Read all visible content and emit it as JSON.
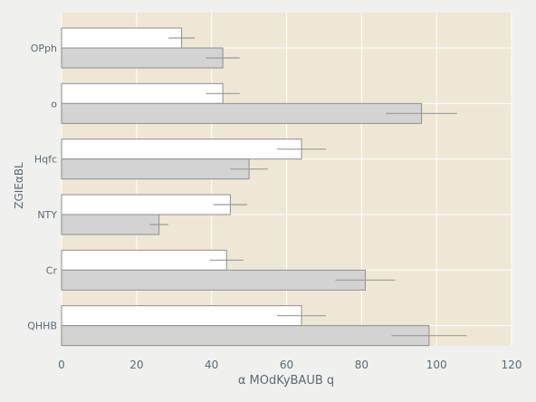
{
  "chart_data": {
    "type": "bar",
    "orientation": "horizontal",
    "categories": [
      "OPph",
      "o",
      "Hqfc",
      "NTY",
      "Cr",
      "QHHB"
    ],
    "series": [
      {
        "values": [
          32,
          43,
          64,
          45,
          44,
          64
        ],
        "errors": [
          3.5,
          4.5,
          6.5,
          4.5,
          4.5,
          6.5
        ],
        "color": "#ffffff"
      },
      {
        "values": [
          43,
          96,
          50,
          26,
          81,
          98
        ],
        "errors": [
          4.5,
          9.5,
          5,
          2.5,
          8,
          10
        ],
        "color": "#d3d3d3"
      }
    ],
    "xlabel": "α MOdKyBAUB q",
    "ylabel": "ZGIEαBL",
    "xlim": [
      0,
      120
    ],
    "xticks": [
      "0",
      "20",
      "40",
      "60",
      "80",
      "100",
      "120"
    ],
    "grid": true,
    "colors": {
      "page_background": "#f0f0ee",
      "plot_background": "#efe7d5",
      "grid": "#ffffff",
      "bar_edge": "#8e8e8e",
      "error_bar": "#9a9a9a",
      "text": "#5a6a75"
    }
  }
}
